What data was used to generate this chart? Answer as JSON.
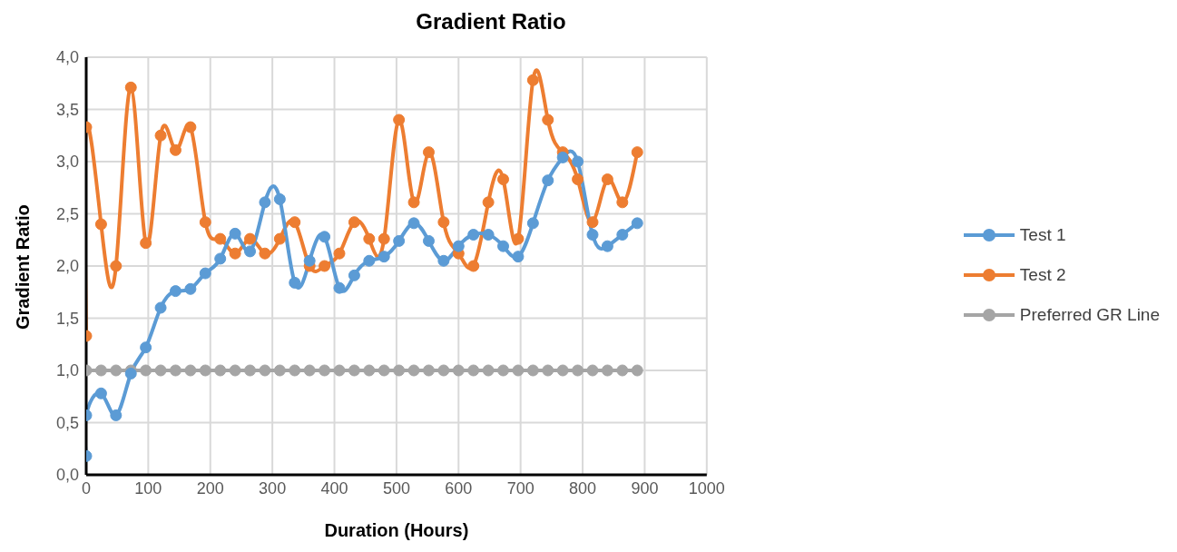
{
  "chart_data": {
    "type": "line",
    "title": "Gradient Ratio",
    "xlabel": "Duration (Hours)",
    "ylabel": "Gradient Ratio",
    "xlim": [
      0,
      1000
    ],
    "xticks": [
      0,
      100,
      200,
      300,
      400,
      500,
      600,
      700,
      800,
      900,
      1000
    ],
    "ylim": [
      0,
      4
    ],
    "yticks": [
      {
        "value": 0,
        "label": "0,0"
      },
      {
        "value": 0.5,
        "label": "0,5"
      },
      {
        "value": 1,
        "label": "1,0"
      },
      {
        "value": 1.5,
        "label": "1,5"
      },
      {
        "value": 2,
        "label": "2,0"
      },
      {
        "value": 2.5,
        "label": "2,5"
      },
      {
        "value": 3,
        "label": "3,0"
      },
      {
        "value": 3.5,
        "label": "3,5"
      },
      {
        "value": 4,
        "label": "4,0"
      }
    ],
    "grid": true,
    "legend": "right",
    "marker": "circle",
    "line_style": "solid",
    "series": [
      {
        "name": "Test 1",
        "color": "#5b9bd5",
        "x": [
          0,
          0,
          24,
          48,
          72,
          96,
          120,
          144,
          168,
          192,
          216,
          240,
          264,
          288,
          312,
          336,
          360,
          384,
          408,
          432,
          456,
          480,
          504,
          528,
          552,
          576,
          600,
          624,
          648,
          672,
          696,
          720,
          744,
          768,
          792,
          816,
          840,
          864,
          888
        ],
        "values": [
          0.18,
          0.57,
          0.78,
          0.57,
          0.97,
          1.22,
          1.6,
          1.76,
          1.78,
          1.93,
          2.07,
          2.31,
          2.14,
          2.61,
          2.64,
          1.84,
          2.05,
          2.28,
          1.79,
          1.91,
          2.05,
          2.09,
          2.24,
          2.41,
          2.24,
          2.05,
          2.19,
          2.3,
          2.3,
          2.19,
          2.09,
          2.41,
          2.82,
          3.04,
          3.0,
          2.3,
          2.19,
          2.3,
          2.41
        ]
      },
      {
        "name": "Test 2",
        "color": "#ed7d31",
        "x": [
          0,
          0,
          24,
          48,
          72,
          96,
          120,
          144,
          168,
          192,
          216,
          240,
          264,
          288,
          312,
          336,
          360,
          384,
          408,
          432,
          456,
          480,
          504,
          528,
          552,
          576,
          600,
          624,
          648,
          672,
          696,
          720,
          744,
          768,
          792,
          816,
          840,
          864,
          888
        ],
        "values": [
          1.33,
          3.33,
          2.4,
          2.0,
          3.71,
          2.22,
          3.25,
          3.11,
          3.33,
          2.42,
          2.26,
          2.12,
          2.26,
          2.12,
          2.26,
          2.42,
          2.0,
          2.0,
          2.12,
          2.42,
          2.26,
          2.26,
          3.4,
          2.61,
          3.09,
          2.42,
          2.12,
          2.0,
          2.61,
          2.83,
          2.26,
          3.78,
          3.4,
          3.09,
          2.83,
          2.42,
          2.83,
          2.61,
          3.09
        ]
      },
      {
        "name": "Preferred GR Line",
        "color": "#a5a5a5",
        "x": [
          0,
          24,
          48,
          72,
          96,
          120,
          144,
          168,
          192,
          216,
          240,
          264,
          288,
          312,
          336,
          360,
          384,
          408,
          432,
          456,
          480,
          504,
          528,
          552,
          576,
          600,
          624,
          648,
          672,
          696,
          720,
          744,
          768,
          792,
          816,
          840,
          864,
          888
        ],
        "values": [
          1,
          1,
          1,
          1,
          1,
          1,
          1,
          1,
          1,
          1,
          1,
          1,
          1,
          1,
          1,
          1,
          1,
          1,
          1,
          1,
          1,
          1,
          1,
          1,
          1,
          1,
          1,
          1,
          1,
          1,
          1,
          1,
          1,
          1,
          1,
          1,
          1,
          1
        ]
      }
    ]
  }
}
